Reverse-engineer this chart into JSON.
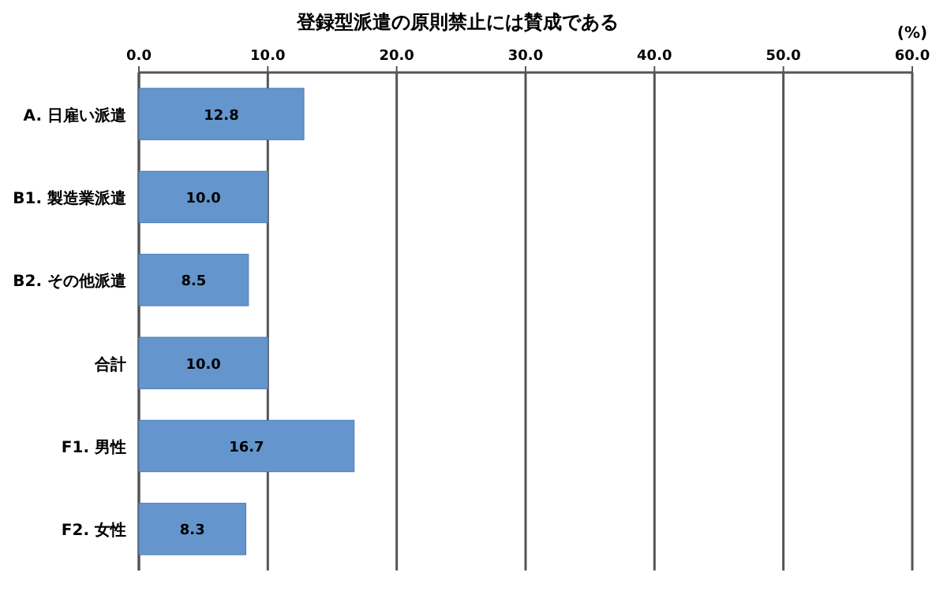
{
  "chart_data": {
    "type": "bar",
    "orientation": "horizontal",
    "title": "登録型派遣の原則禁止には賛成である",
    "xlabel": "(%)",
    "categories": [
      "A. 日雇い派遣",
      "B1. 製造業派遣",
      "B2. その他派遣",
      "合計",
      "F1. 男性",
      "F2. 女性"
    ],
    "values": [
      12.8,
      10.0,
      8.5,
      10.0,
      16.7,
      8.3
    ],
    "value_labels": [
      "12.8",
      "10.0",
      "8.5",
      "10.0",
      "16.7",
      "8.3"
    ],
    "color": "#6495cd",
    "xlim": [
      0,
      60
    ],
    "xticks": [
      {
        "value": 0,
        "label": "0.0"
      },
      {
        "value": 10,
        "label": "10.0"
      },
      {
        "value": 20,
        "label": "20.0"
      },
      {
        "value": 30,
        "label": "30.0"
      },
      {
        "value": 40,
        "label": "40.0"
      },
      {
        "value": 50,
        "label": "50.0"
      },
      {
        "value": 60,
        "label": "60.0"
      }
    ],
    "grid": "x"
  }
}
